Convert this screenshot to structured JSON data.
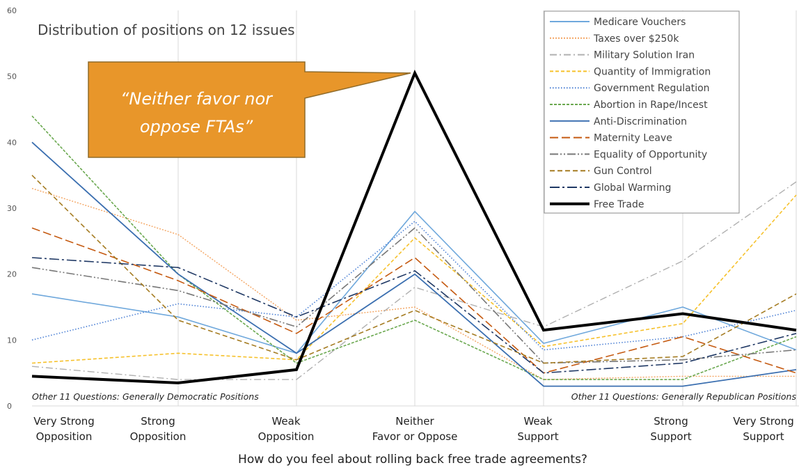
{
  "chart_data": {
    "type": "line",
    "title": "Distribution of positions on 12 issues",
    "xlabel": "How do you feel about rolling back free trade agreements?",
    "ylabel": "",
    "ylim": [
      0,
      60
    ],
    "yticks": [
      "0",
      "10",
      "20",
      "30",
      "40",
      "50",
      "60"
    ],
    "grid": "vertical",
    "legend_position": "top-right",
    "categories": [
      [
        "Very Strong",
        "Opposition"
      ],
      [
        "Strong",
        "Opposition"
      ],
      [
        "Weak",
        "Opposition"
      ],
      [
        "Neither",
        "Favor or Oppose"
      ],
      [
        "Weak",
        "Support"
      ],
      [
        "Strong",
        "Support"
      ],
      [
        "Very Strong",
        "Support"
      ]
    ],
    "series": [
      {
        "name": "Medicare Vouchers",
        "values": [
          17,
          13.5,
          8,
          29.5,
          9.5,
          15,
          8.5
        ],
        "color": "#6fa8dc",
        "dash": "",
        "width": 1.6
      },
      {
        "name": "Taxes over $250k",
        "values": [
          33,
          26,
          13,
          15,
          4,
          4.5,
          4.5
        ],
        "color": "#f4a460",
        "dash": "2,2",
        "width": 1.4
      },
      {
        "name": "Military Solution Iran",
        "values": [
          6,
          4,
          4,
          18,
          12,
          22,
          34
        ],
        "color": "#b0b0b0",
        "dash": "10,4,2,4",
        "width": 1.4
      },
      {
        "name": "Quantity of Immigration",
        "values": [
          6.5,
          8,
          7,
          25.5,
          9,
          12.5,
          32
        ],
        "color": "#f6c12b",
        "dash": "5,3",
        "width": 1.6
      },
      {
        "name": "Government Regulation",
        "values": [
          10,
          15.5,
          13.5,
          28,
          8.5,
          10.5,
          14.5
        ],
        "color": "#4a7fd4",
        "dash": "1.5,2.5",
        "width": 1.6
      },
      {
        "name": "Abortion in Rape/Incest",
        "values": [
          44,
          20,
          6.5,
          13,
          4,
          4,
          10.5
        ],
        "color": "#6aa84f",
        "dash": "4,2",
        "width": 1.6
      },
      {
        "name": "Anti-Discrimination",
        "values": [
          40,
          20,
          8,
          20,
          3,
          3,
          5.5
        ],
        "color": "#3b6fb0",
        "dash": "",
        "width": 1.8
      },
      {
        "name": "Maternity Leave",
        "values": [
          27,
          19,
          11,
          22.5,
          5,
          10.5,
          5
        ],
        "color": "#c55a11",
        "dash": "12,5",
        "width": 1.6
      },
      {
        "name": "Equality of Opportunity",
        "values": [
          21,
          17.5,
          12,
          27,
          6.5,
          7,
          8.5
        ],
        "color": "#777777",
        "dash": "12,3,2,3,2,3",
        "width": 1.6
      },
      {
        "name": "Gun Control",
        "values": [
          35,
          13,
          7,
          14.5,
          6.5,
          7.5,
          17
        ],
        "color": "#a57c22",
        "dash": "7,4",
        "width": 1.6
      },
      {
        "name": "Global Warming",
        "values": [
          22.5,
          21,
          13.5,
          20.5,
          5,
          6.5,
          11
        ],
        "color": "#1f3864",
        "dash": "14,4,3,4",
        "width": 1.6
      },
      {
        "name": "Free Trade",
        "values": [
          4.5,
          3.5,
          5.5,
          50.5,
          11.5,
          14,
          11.5
        ],
        "color": "#000000",
        "dash": "",
        "width": 4
      }
    ],
    "annotations": {
      "callout": [
        "“Neither favor nor",
        "oppose FTAs”"
      ],
      "left_note": "Other 11  Questions: Generally Democratic Positions",
      "right_note": "Other 11  Questions: Generally Republican Positions"
    },
    "callout_color": "#e8962a"
  }
}
